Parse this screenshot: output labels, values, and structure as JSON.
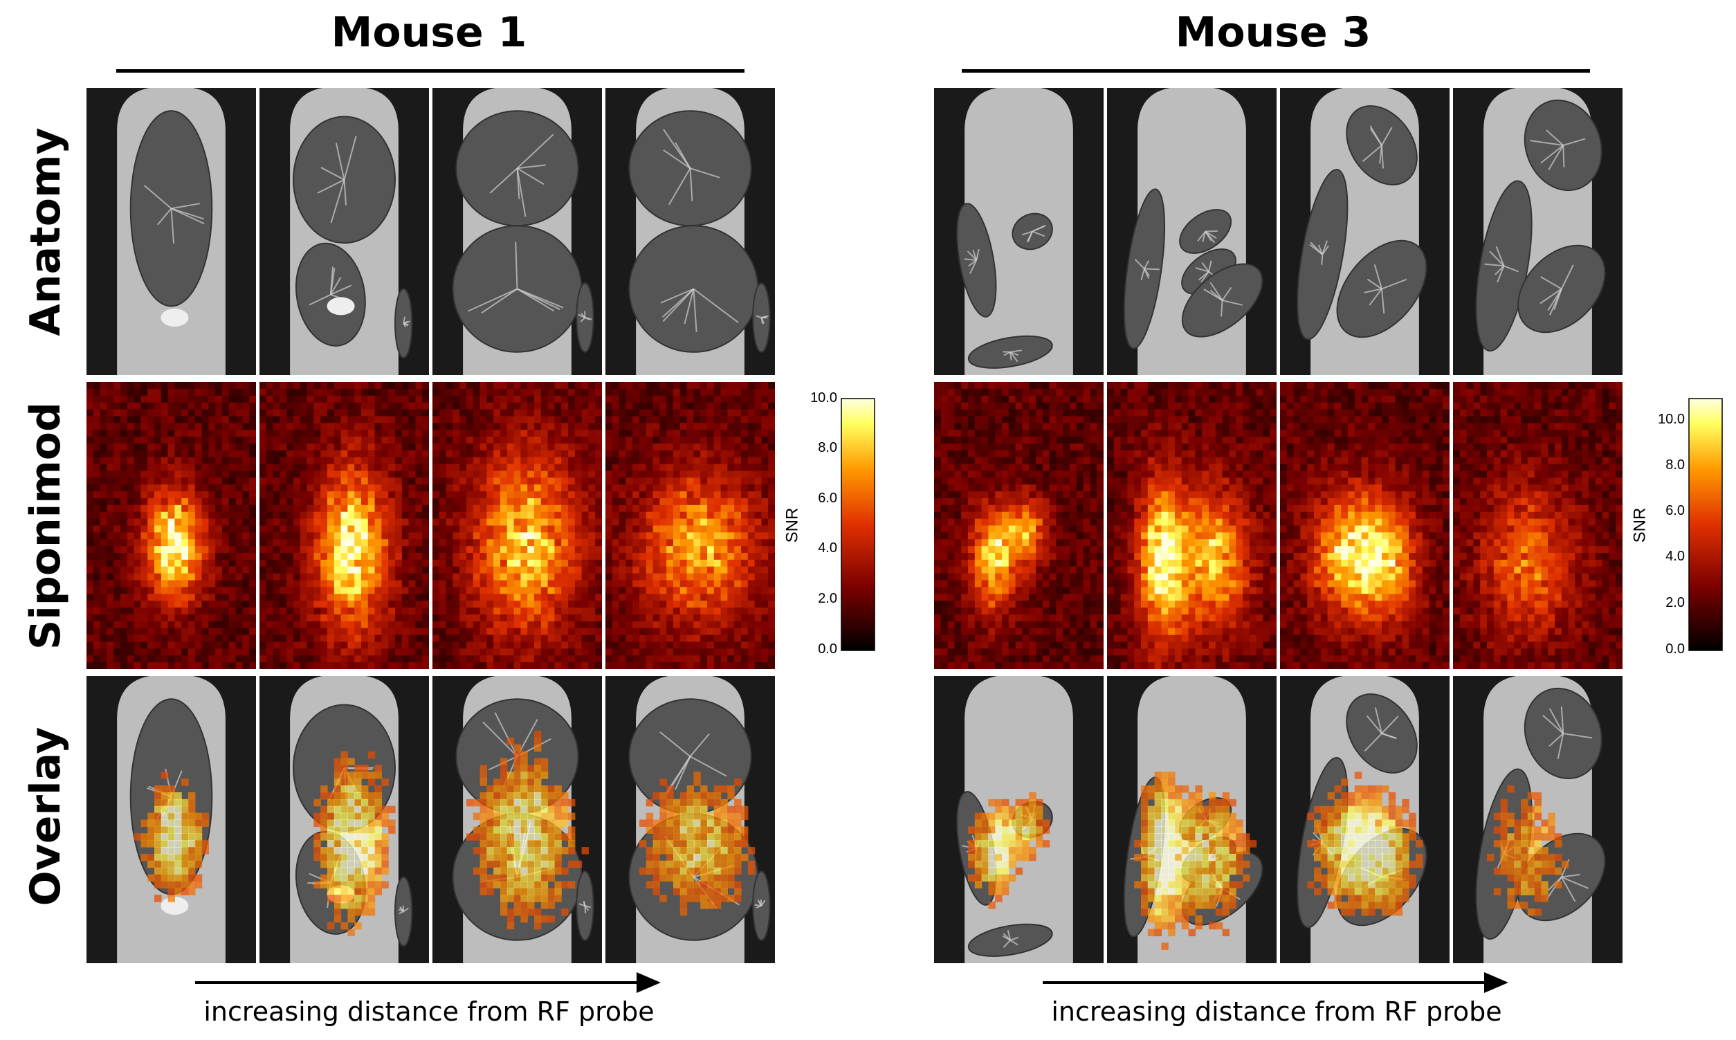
{
  "panels": [
    {
      "title": "Mouse 1",
      "caption": "increasing distance from RF probe"
    },
    {
      "title": "Mouse 3",
      "caption": "increasing distance from RF probe"
    }
  ],
  "rows": [
    "Anatomy",
    "Siponimod",
    "Overlay"
  ],
  "colorbars": [
    {
      "label": "SNR",
      "ticks": [
        "10.0",
        "8.0",
        "6.0",
        "4.0",
        "2.0",
        "0.0"
      ],
      "max": 10.0
    },
    {
      "label": "SNR",
      "ticks": [
        "10.0",
        "8.0",
        "6.0",
        "4.0",
        "2.0",
        "0.0"
      ],
      "max": 11.0
    }
  ],
  "colormap": {
    "name": "hot",
    "stops": [
      "#000000",
      "#7a0000",
      "#e03000",
      "#ff9a00",
      "#ffff60",
      "#ffffe0"
    ]
  }
}
